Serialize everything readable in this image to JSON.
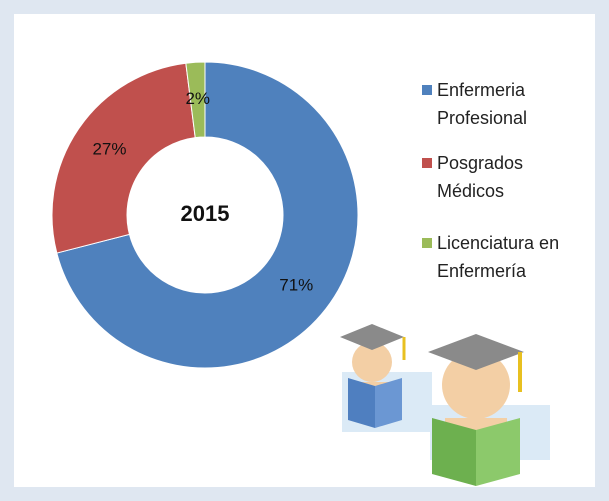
{
  "chart_data": {
    "type": "donut",
    "center_label": "2015",
    "categories": [
      "Enfermeria Profesional",
      "Posgrados Médicos",
      "Licenciatura en Enfermería"
    ],
    "values": [
      71,
      27,
      2
    ],
    "value_labels": [
      "71%",
      "27%",
      "2%"
    ],
    "colors": [
      "#4f81bd",
      "#c0504d",
      "#9bbb59"
    ],
    "legend": "right"
  }
}
